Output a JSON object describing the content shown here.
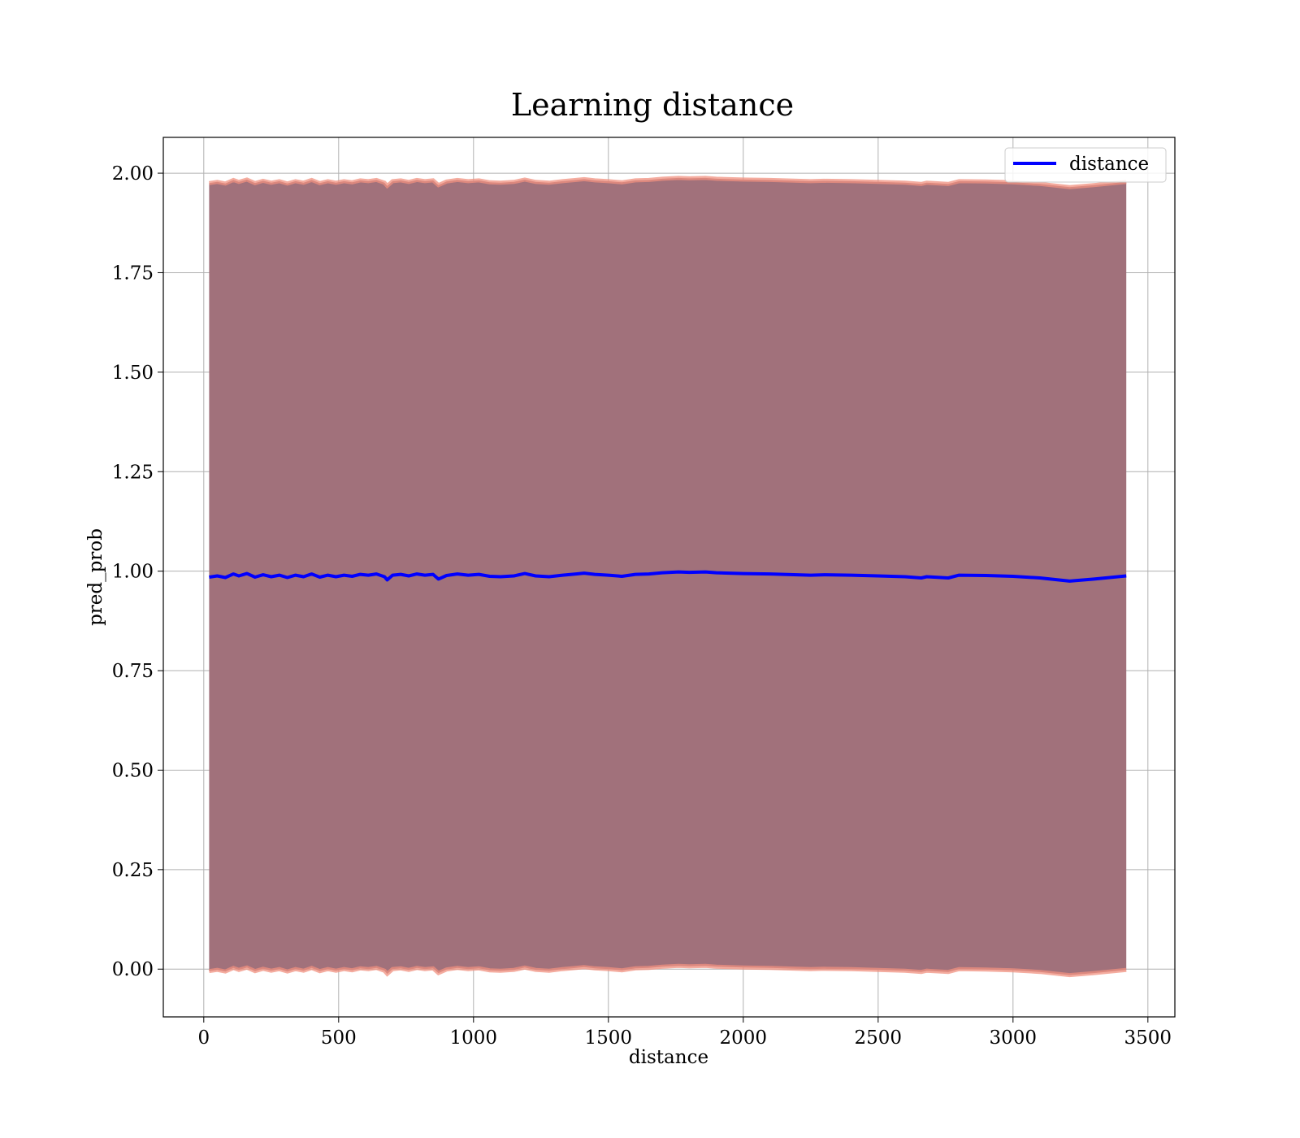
{
  "chart_data": {
    "type": "line",
    "title": "Learning distance",
    "xlabel": "distance",
    "ylabel": "pred_prob",
    "xlim": [
      -150,
      3600
    ],
    "ylim": [
      -0.12,
      2.09
    ],
    "xticks": [
      0,
      500,
      1000,
      1500,
      2000,
      2500,
      3000,
      3500
    ],
    "yticks": [
      0.0,
      0.25,
      0.5,
      0.75,
      1.0,
      1.25,
      1.5,
      1.75,
      2.0
    ],
    "xtick_labels": [
      "0",
      "500",
      "1000",
      "1500",
      "2000",
      "2500",
      "3000",
      "3500"
    ],
    "ytick_labels": [
      "0.00",
      "0.25",
      "0.50",
      "0.75",
      "1.00",
      "1.25",
      "1.50",
      "1.75",
      "2.00"
    ],
    "grid": true,
    "legend": {
      "position": "top-right",
      "entries": [
        "distance"
      ]
    },
    "colors": {
      "line": "#0000ff",
      "band_fill": "#a1717b",
      "band_edge": "#f0907f",
      "grid": "#b0b0b0"
    },
    "series": [
      {
        "name": "distance",
        "x": [
          20,
          50,
          80,
          110,
          130,
          160,
          190,
          220,
          250,
          280,
          310,
          340,
          370,
          400,
          430,
          460,
          490,
          520,
          550,
          580,
          610,
          640,
          670,
          680,
          700,
          730,
          760,
          790,
          820,
          850,
          870,
          900,
          940,
          980,
          1020,
          1060,
          1100,
          1150,
          1190,
          1230,
          1280,
          1330,
          1380,
          1410,
          1450,
          1500,
          1550,
          1600,
          1650,
          1700,
          1760,
          1800,
          1860,
          1900,
          2000,
          2100,
          2250,
          2300,
          2400,
          2500,
          2600,
          2660,
          2680,
          2760,
          2800,
          2900,
          3000,
          3100,
          3210,
          3300,
          3420
        ],
        "y": [
          0.985,
          0.988,
          0.984,
          0.993,
          0.988,
          0.994,
          0.985,
          0.991,
          0.986,
          0.99,
          0.984,
          0.99,
          0.986,
          0.993,
          0.985,
          0.99,
          0.986,
          0.99,
          0.987,
          0.992,
          0.99,
          0.993,
          0.986,
          0.978,
          0.99,
          0.992,
          0.988,
          0.993,
          0.99,
          0.992,
          0.98,
          0.989,
          0.993,
          0.99,
          0.992,
          0.987,
          0.986,
          0.988,
          0.994,
          0.988,
          0.986,
          0.99,
          0.993,
          0.995,
          0.992,
          0.99,
          0.987,
          0.992,
          0.993,
          0.996,
          0.998,
          0.997,
          0.998,
          0.996,
          0.994,
          0.993,
          0.99,
          0.991,
          0.99,
          0.988,
          0.986,
          0.983,
          0.986,
          0.983,
          0.99,
          0.989,
          0.987,
          0.983,
          0.975,
          0.98,
          0.988
        ],
        "band_half_width": 0.99
      }
    ]
  }
}
